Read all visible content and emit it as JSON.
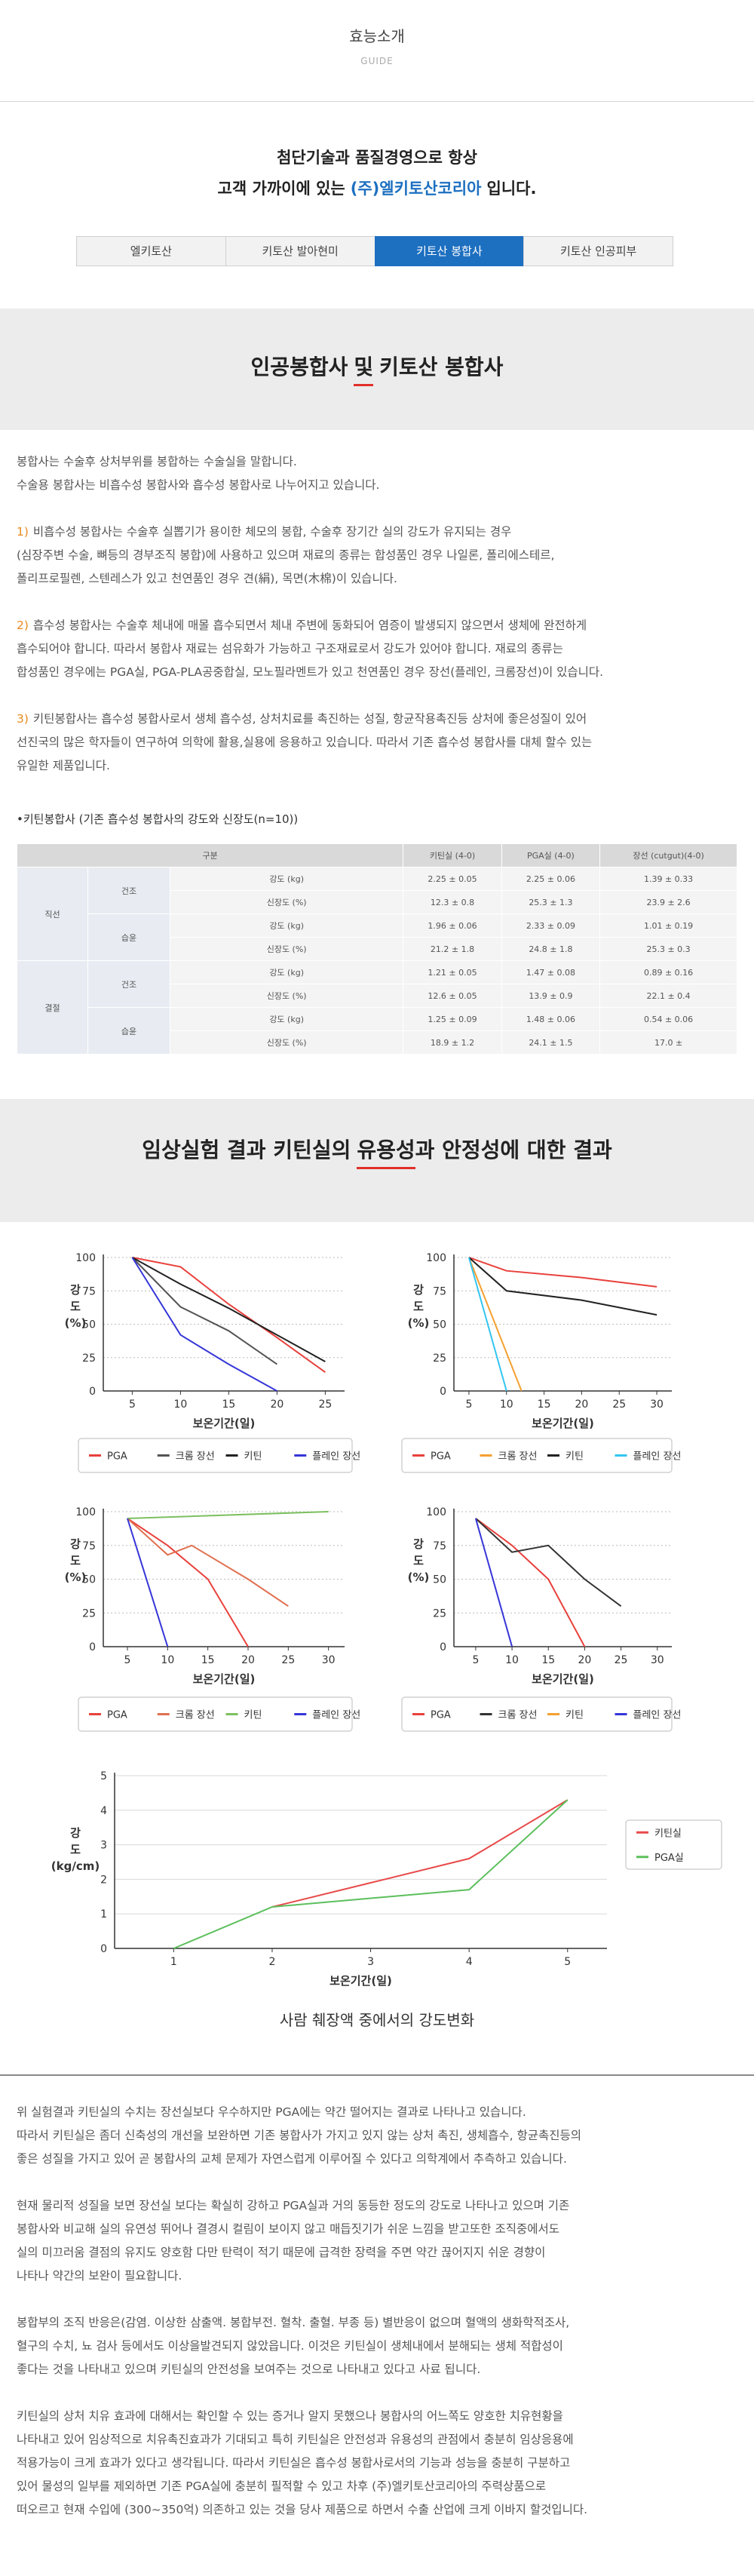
{
  "header": {
    "title": "효능소개",
    "subtitle": "GUIDE"
  },
  "intro": {
    "line1": "첨단기술과 품질경영으로 항상",
    "line2_before": "고객 가까이에 있는",
    "line2_brand": "(주)엘키토산코리아",
    "line2_after": "입니다."
  },
  "tabs": [
    {
      "label": "엘키토산",
      "active": false
    },
    {
      "label": "키토산 발아현미",
      "active": false
    },
    {
      "label": "키토산 봉합사",
      "active": true
    },
    {
      "label": "키토산 인공피부",
      "active": false
    }
  ],
  "section1": {
    "title_parts": [
      "인공봉합사",
      "및",
      "키토산 봉합사"
    ],
    "paragraphs": [
      {
        "lines": [
          "봉합사는 수술후 상처부위를 봉합하는 수술실을 말합니다.",
          "수술용 봉합사는 비흡수성 봉합사와 흡수성 봉합사로 나누어지고 있습니다."
        ]
      },
      {
        "marker": "1)",
        "lines": [
          "비흡수성 봉합사는 수술후 실뽑기가 용이한 체모의 봉합, 수술후 장기간 실의 강도가 유지되는 경우",
          "(심장주변 수술, 뼈등의 경부조직 봉합)에 사용하고 있으며 재료의 종류는 합성품인 경우 나일론, 폴리에스테르,",
          "폴리프로필렌, 스텐레스가 있고 천연품인 경우 견(絹), 목면(木棉)이 있습니다."
        ]
      },
      {
        "marker": "2)",
        "lines": [
          "흡수성 봉합사는 수술후 체내에 매몰 흡수되면서 체내 주변에 동화되어 염증이 발생되지 않으면서 생체에 완전하게",
          "흡수되어야 합니다. 따라서 봉합사 재료는 섬유화가 가능하고 구조재료로서 강도가 있어야 합니다. 재료의 종류는",
          "합성품인 경우에는 PGA실, PGA-PLA공중합실, 모노필라멘트가 있고 천연품인 경우 장선(플레인, 크롬장선)이 있습니다."
        ]
      },
      {
        "marker": "3)",
        "lines": [
          "키틴봉합사는 흡수성 봉합사로서 생체 흡수성, 상처치료를 촉진하는 성질, 항균작용촉진등 상처에 좋은성질이 있어",
          "선진국의 많은 학자들이 연구하여 의학에 활용,실용에 응용하고 있습니다. 따라서 기존 흡수성 봉합사를 대체 할수 있는",
          "유일한 제품입니다."
        ]
      }
    ],
    "table_caption": "•키틴봉합사 (기존 흡수성 봉합사의 강도와 신장도(n=10))",
    "table": {
      "header": [
        "구분",
        "키틴실 (4-0)",
        "PGA실 (4-0)",
        "장선 (cutgut)(4-0)"
      ],
      "groups": [
        {
          "label": "직선",
          "conditions": [
            {
              "label": "건조",
              "rows": [
                {
                  "label": "강도 (kg)",
                  "values": [
                    "2.25 ± 0.05",
                    "2.25 ± 0.06",
                    "1.39 ± 0.33"
                  ]
                },
                {
                  "label": "신장도 (%)",
                  "values": [
                    "12.3 ± 0.8",
                    "25.3 ± 1.3",
                    "23.9 ± 2.6"
                  ]
                }
              ]
            },
            {
              "label": "습윤",
              "rows": [
                {
                  "label": "강도 (kg)",
                  "values": [
                    "1.96 ± 0.06",
                    "2.33 ± 0.09",
                    "1.01 ± 0.19"
                  ]
                },
                {
                  "label": "신장도 (%)",
                  "values": [
                    "21.2 ± 1.8",
                    "24.8 ± 1.8",
                    "25.3 ± 0.3"
                  ]
                }
              ]
            }
          ]
        },
        {
          "label": "결절",
          "conditions": [
            {
              "label": "건조",
              "rows": [
                {
                  "label": "강도 (kg)",
                  "values": [
                    "1.21 ± 0.05",
                    "1.47 ± 0.08",
                    "0.89 ± 0.16"
                  ]
                },
                {
                  "label": "신장도 (%)",
                  "values": [
                    "12.6 ± 0.05",
                    "13.9 ± 0.9",
                    "22.1 ± 0.4"
                  ]
                }
              ]
            },
            {
              "label": "습윤",
              "rows": [
                {
                  "label": "강도 (kg)",
                  "values": [
                    "1.25 ± 0.09",
                    "1.48 ± 0.06",
                    "0.54 ± 0.06"
                  ]
                },
                {
                  "label": "신장도 (%)",
                  "values": [
                    "18.9 ± 1.2",
                    "24.1 ± 1.5",
                    "17.0 ±"
                  ]
                }
              ]
            }
          ]
        }
      ]
    }
  },
  "section2": {
    "title_parts": [
      "임상실험 결과 키틴실의",
      "유용성",
      "과 안정성에 대한 결과"
    ]
  },
  "chart_data": [
    {
      "type": "line",
      "xlabel": "보온기간(일)",
      "ylabel": [
        "강",
        "도",
        "(%)"
      ],
      "xlim": [
        2,
        27
      ],
      "ylim": [
        0,
        100
      ],
      "xticks": [
        5,
        10,
        15,
        20,
        25
      ],
      "yticks": [
        0,
        25,
        50,
        75,
        100
      ],
      "grid": true,
      "legend": "bottom",
      "series": [
        {
          "name": "PGA",
          "color": "#e8413c",
          "x": [
            5,
            10,
            15,
            20,
            25
          ],
          "values": [
            100,
            93,
            65,
            40,
            14
          ]
        },
        {
          "name": "크롬 장선",
          "color": "#555555",
          "x": [
            5,
            10,
            15,
            20
          ],
          "values": [
            100,
            63,
            45,
            20
          ]
        },
        {
          "name": "키틴",
          "color": "#222222",
          "x": [
            5,
            10,
            15,
            20,
            25
          ],
          "values": [
            100,
            80,
            62,
            42,
            22
          ]
        },
        {
          "name": "플레인 장선",
          "color": "#3636d8",
          "x": [
            5,
            10,
            15,
            20
          ],
          "values": [
            100,
            42,
            20,
            0
          ]
        }
      ]
    },
    {
      "type": "line",
      "xlabel": "보온기간(일)",
      "ylabel": [
        "강",
        "도",
        "(%)"
      ],
      "xlim": [
        3,
        32
      ],
      "ylim": [
        0,
        100
      ],
      "xticks": [
        5,
        10,
        15,
        20,
        25,
        30
      ],
      "yticks": [
        0,
        25,
        50,
        75,
        100
      ],
      "grid": true,
      "legend": "bottom",
      "series": [
        {
          "name": "PGA",
          "color": "#e8413c",
          "x": [
            5,
            10,
            20,
            30
          ],
          "values": [
            100,
            90,
            85,
            78
          ]
        },
        {
          "name": "크롬 장선",
          "color": "#f5a030",
          "x": [
            5,
            12
          ],
          "values": [
            100,
            0
          ]
        },
        {
          "name": "키틴",
          "color": "#222222",
          "x": [
            5,
            10,
            20,
            30
          ],
          "values": [
            100,
            75,
            68,
            57
          ]
        },
        {
          "name": "플레인 장선",
          "color": "#33c5f0",
          "x": [
            5,
            10
          ],
          "values": [
            100,
            0
          ]
        }
      ]
    },
    {
      "type": "line",
      "xlabel": "보온기간(일)",
      "ylabel": [
        "강",
        "도",
        "(%)"
      ],
      "xlim": [
        2,
        32
      ],
      "ylim": [
        0,
        100
      ],
      "xticks": [
        5,
        10,
        15,
        20,
        25,
        30
      ],
      "yticks": [
        0,
        25,
        50,
        75,
        100
      ],
      "grid": true,
      "legend": "bottom",
      "series": [
        {
          "name": "PGA",
          "color": "#e8413c",
          "x": [
            5,
            10,
            15,
            20
          ],
          "values": [
            95,
            75,
            50,
            0
          ]
        },
        {
          "name": "크롬 장선",
          "color": "#e07050",
          "x": [
            5,
            10,
            13,
            20,
            25
          ],
          "values": [
            95,
            68,
            75,
            50,
            30
          ]
        },
        {
          "name": "키틴",
          "color": "#7cc060",
          "x": [
            5,
            30
          ],
          "values": [
            95,
            100
          ]
        },
        {
          "name": "플레인 장선",
          "color": "#3636d8",
          "x": [
            5,
            10
          ],
          "values": [
            95,
            0
          ]
        }
      ]
    },
    {
      "type": "line",
      "xlabel": "보온기간(일)",
      "ylabel": [
        "강",
        "도",
        "(%)"
      ],
      "xlim": [
        2,
        32
      ],
      "ylim": [
        0,
        100
      ],
      "xticks": [
        5,
        10,
        15,
        20,
        25,
        30
      ],
      "yticks": [
        0,
        25,
        50,
        75,
        100
      ],
      "grid": true,
      "legend": "bottom",
      "series": [
        {
          "name": "PGA",
          "color": "#e8413c",
          "x": [
            5,
            10,
            15,
            20
          ],
          "values": [
            95,
            75,
            50,
            0
          ]
        },
        {
          "name": "크롬 장선",
          "color": "#333333",
          "x": [
            5,
            10,
            15,
            20,
            25
          ],
          "values": [
            95,
            70,
            75,
            50,
            30
          ]
        },
        {
          "name": "키틴",
          "color": "#f5a030",
          "x": [],
          "values": []
        },
        {
          "name": "플레인 장선",
          "color": "#3636d8",
          "x": [
            5,
            10
          ],
          "values": [
            95,
            0
          ]
        }
      ]
    },
    {
      "type": "line",
      "title": "사람 췌장액 중에서의 강도변화",
      "xlabel": "보온기간(일)",
      "ylabel": [
        "강",
        "도",
        "(kg/cm)"
      ],
      "xlim": [
        0.4,
        5.4
      ],
      "ylim": [
        0,
        5
      ],
      "xticks": [
        1,
        2,
        3,
        4,
        5
      ],
      "yticks": [
        0,
        1,
        2,
        3,
        4,
        5
      ],
      "grid": true,
      "legend": "right",
      "series": [
        {
          "name": "키틴실",
          "color": "#e84a4a",
          "x": [
            2,
            3,
            4,
            5
          ],
          "values": [
            1.2,
            1.9,
            2.6,
            4.3
          ]
        },
        {
          "name": "PGA실",
          "color": "#5cbf5c",
          "x": [
            1,
            2,
            4,
            5
          ],
          "values": [
            0,
            1.2,
            1.7,
            4.3
          ]
        }
      ]
    }
  ],
  "conclusion": {
    "paragraphs": [
      {
        "lines": [
          "위 실험결과 키틴실의 수치는 장선실보다 우수하지만 PGA에는 약간 떨어지는 결과로 나타나고 있습니다.",
          "따라서 키틴실은 좀더 신축성의 개선을 보완하면 기존 봉합사가 가지고 있지 않는 상처 촉진, 생체흡수, 항균촉진등의",
          "좋은 성질을 가지고 있어 곧 봉합사의 교체 문제가 자연스럽게 이루어질 수 있다고 의학계에서 추측하고 있습니다."
        ]
      },
      {
        "lines": [
          "현재 물리적 성질을 보면 장선실 보다는 확실히 강하고 PGA실과 거의 동등한 정도의 강도로 나타나고 있으며 기존",
          "봉합사와 비교해 실의 유연성 뛰어나 결경시 컬림이 보이지 않고 매듭짓기가 쉬운 느낌을 받고또한 조직중에서도",
          "실의 미끄러움 결점의 유지도 양호함 다만 탄력이 적기 때문에 급격한 장력을 주면 약간 끊어지지 쉬운 경향이",
          "나타나 약간의 보완이 필요합니다."
        ]
      },
      {
        "lines": [
          "봉합부의 조직 반응은(감염. 이상한 삼출액. 봉합부전. 혈착. 출혈. 부종 등) 별반응이 없으며 혈액의 생화학적조사,",
          "혈구의 수치, 뇨 검사 등에서도 이상을발견되지 않았읍니다. 이것은 키틴실이 생체내에서 분해되는 생체 적합성이",
          "좋다는 것을 나타내고 있으며 키틴실의 안전성을 보여주는 것으로 나타내고 있다고 사료 됩니다."
        ]
      },
      {
        "lines": [
          "키틴실의 상처 치유 효과에 대해서는 확인할 수 있는 증거나 알지 못했으나 봉합사의 어느쪽도 양호한 치유현황을",
          "나타내고 있어 임상적으로 치유촉진효과가 기대되고 특히 키틴실은 안전성과 유용성의 관점에서 충분히 임상응용에",
          "적용가능이 크게 효과가 있다고 생각됩니다. 따라서 키틴실은 흡수성 봉합사로서의 기능과 성능을 충분히 구분하고",
          "있어 물성의 일부를 제외하면 기존 PGA실에 충분히 필적할 수 있고 차후 (주)엘키토산코리아의 주력상품으로",
          "떠오르고 현재 수입에 (300~350억) 의존하고 있는 것을 당사 제품으로 하면서 수출 산업에 크게 이바지 할것입니다."
        ]
      }
    ]
  }
}
